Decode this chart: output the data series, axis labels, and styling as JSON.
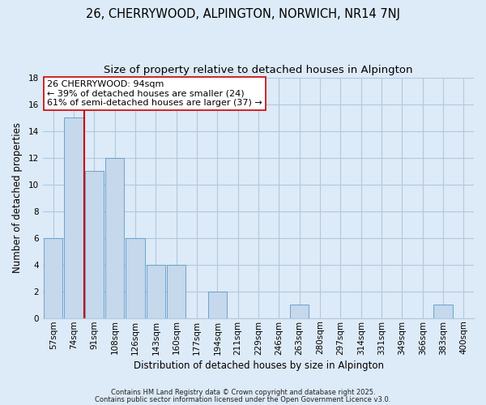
{
  "title": "26, CHERRYWOOD, ALPINGTON, NORWICH, NR14 7NJ",
  "subtitle": "Size of property relative to detached houses in Alpington",
  "xlabel": "Distribution of detached houses by size in Alpington",
  "ylabel": "Number of detached properties",
  "categories": [
    "57sqm",
    "74sqm",
    "91sqm",
    "108sqm",
    "126sqm",
    "143sqm",
    "160sqm",
    "177sqm",
    "194sqm",
    "211sqm",
    "229sqm",
    "246sqm",
    "263sqm",
    "280sqm",
    "297sqm",
    "314sqm",
    "331sqm",
    "349sqm",
    "366sqm",
    "383sqm",
    "400sqm"
  ],
  "values": [
    6,
    15,
    11,
    12,
    6,
    4,
    4,
    0,
    2,
    0,
    0,
    0,
    1,
    0,
    0,
    0,
    0,
    0,
    0,
    1,
    0
  ],
  "bar_color": "#c5d8ec",
  "bar_edge_color": "#5a9ac8",
  "vline_color": "#cc0000",
  "vline_pos": 1.5,
  "ylim": [
    0,
    18
  ],
  "yticks": [
    0,
    2,
    4,
    6,
    8,
    10,
    12,
    14,
    16,
    18
  ],
  "annotation_text": "26 CHERRYWOOD: 94sqm\n← 39% of detached houses are smaller (24)\n61% of semi-detached houses are larger (37) →",
  "footnote1": "Contains HM Land Registry data © Crown copyright and database right 2025.",
  "footnote2": "Contains public sector information licensed under the Open Government Licence v3.0.",
  "background_color": "#ddeaf7",
  "plot_bg_color": "#ddeaf7",
  "grid_color": "#b0c8e0",
  "title_fontsize": 10.5,
  "subtitle_fontsize": 9.5,
  "xlabel_fontsize": 8.5,
  "ylabel_fontsize": 8.5,
  "tick_fontsize": 7.5,
  "annotation_fontsize": 8.0,
  "footnote_fontsize": 6.0
}
